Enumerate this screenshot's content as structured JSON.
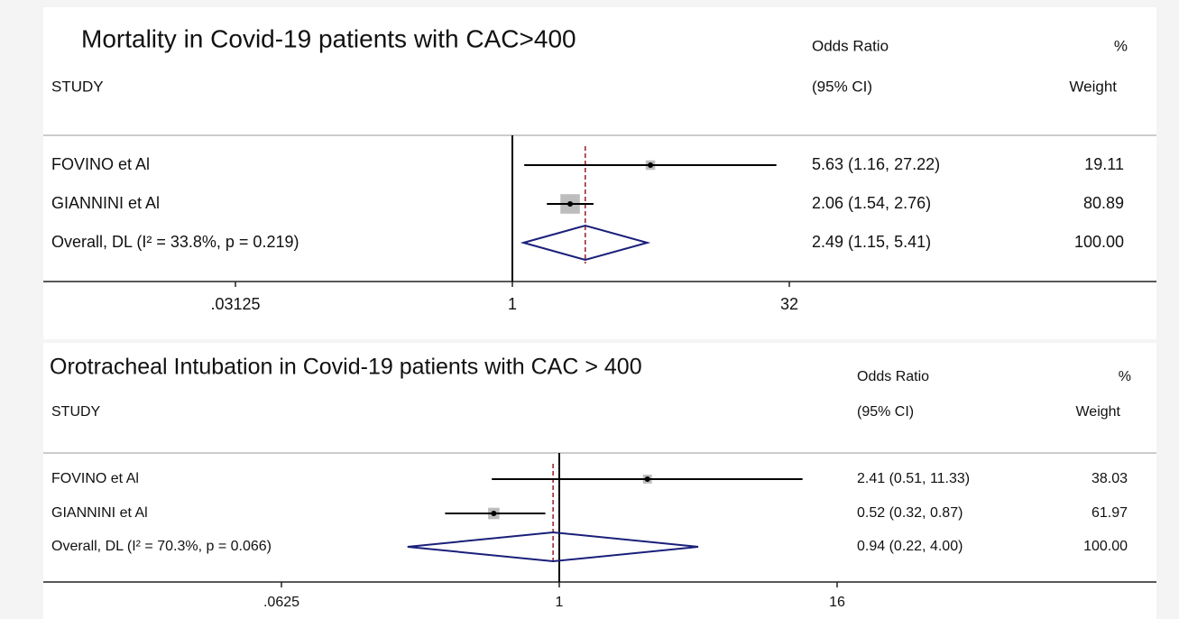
{
  "chart_data": [
    {
      "type": "forest",
      "title": "Mortality in Covid-19 patients with CAC>400",
      "column_headers": {
        "study": "STUDY",
        "effect": "Odds Ratio",
        "ci": "(95% CI)",
        "percent": "%",
        "weight": "Weight"
      },
      "studies": [
        {
          "name": "FOVINO et Al",
          "or": 5.63,
          "lower": 1.16,
          "upper": 27.22,
          "ci_label": "5.63 (1.16, 27.22)",
          "weight": 19.11,
          "weight_label": "19.11"
        },
        {
          "name": "GIANNINI et Al",
          "or": 2.06,
          "lower": 1.54,
          "upper": 2.76,
          "ci_label": "2.06 (1.54, 2.76)",
          "weight": 80.89,
          "weight_label": "80.89"
        }
      ],
      "overall": {
        "name": "Overall, DL (I² = 33.8%, p = 0.219)",
        "or": 2.49,
        "lower": 1.15,
        "upper": 5.41,
        "ci_label": "2.49 (1.15, 5.41)",
        "weight": 100,
        "weight_label": "100.00"
      },
      "log_scale": true,
      "reference_line": 1,
      "xlim": [
        0.03125,
        32
      ],
      "xticks": [
        {
          "value": 0.03125,
          "label": ".03125"
        },
        1,
        32
      ],
      "box_color": "#bdbdbd",
      "diamond_color": "#1a1f7a",
      "overall_line_color": "#9b1c1c"
    },
    {
      "type": "forest",
      "title": "Orotracheal Intubation in Covid-19 patients with CAC > 400",
      "column_headers": {
        "study": "STUDY",
        "effect": "Odds Ratio",
        "ci": "(95% CI)",
        "percent": "%",
        "weight": "Weight"
      },
      "studies": [
        {
          "name": "FOVINO et Al",
          "or": 2.41,
          "lower": 0.51,
          "upper": 11.33,
          "ci_label": "2.41 (0.51, 11.33)",
          "weight": 38.03,
          "weight_label": "38.03"
        },
        {
          "name": "GIANNINI et Al",
          "or": 0.52,
          "lower": 0.32,
          "upper": 0.87,
          "ci_label": "0.52 (0.32, 0.87)",
          "weight": 61.97,
          "weight_label": "61.97"
        }
      ],
      "overall": {
        "name": "Overall, DL (I² = 70.3%, p = 0.066)",
        "or": 0.94,
        "lower": 0.22,
        "upper": 4.0,
        "ci_label": "0.94 (0.22, 4.00)",
        "weight": 100,
        "weight_label": "100.00"
      },
      "log_scale": true,
      "reference_line": 1,
      "xlim": [
        0.0625,
        16
      ],
      "xticks": [
        {
          "value": 0.0625,
          "label": ".0625"
        },
        1,
        16
      ],
      "box_color": "#bdbdbd",
      "diamond_color": "#1a1f7a",
      "overall_line_color": "#9b1c1c"
    }
  ]
}
